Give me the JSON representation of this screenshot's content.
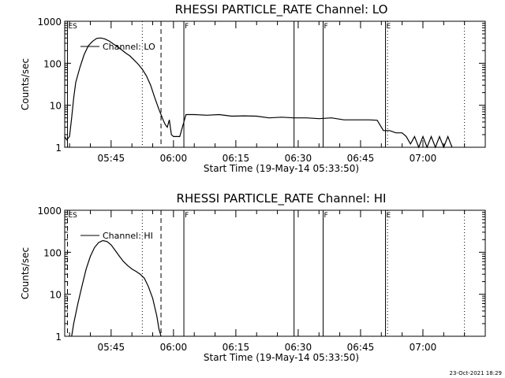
{
  "chart_data": [
    {
      "type": "line",
      "title": "RHESSI PARTICLE_RATE Channel: LO",
      "xlabel": "Start Time (19-May-14 05:33:50)",
      "ylabel": "Counts/sec",
      "yscale": "log",
      "ylim": [
        1,
        1000
      ],
      "xlim": [
        "05:33:50",
        "07:15:00"
      ],
      "xticks": [
        "05:45",
        "06:00",
        "06:15",
        "06:30",
        "06:45",
        "07:00"
      ],
      "yticks": [
        "1",
        "10",
        "100",
        "1000"
      ],
      "legend": "Channel: LO",
      "grid": false,
      "series": [
        {
          "name": "Channel: LO",
          "x": [
            "05:33:50",
            "05:34:20",
            "05:35:00",
            "05:35:30",
            "05:36:00",
            "05:36:30",
            "05:37:30",
            "05:38:30",
            "05:39:30",
            "05:40:30",
            "05:41:30",
            "05:42:30",
            "05:43:30",
            "05:44:30",
            "05:45:30",
            "05:46:30",
            "05:47:30",
            "05:48:30",
            "05:49:30",
            "05:50:30",
            "05:51:30",
            "05:52:30",
            "05:53:30",
            "05:54:30",
            "05:55:30",
            "05:56:30",
            "05:57:30",
            "05:58:00",
            "05:58:30",
            "05:59:00",
            "05:59:30",
            "06:00:00",
            "06:00:30",
            "06:01:00",
            "06:01:30",
            "06:03:00",
            "06:05:00",
            "06:08:00",
            "06:11:00",
            "06:14:00",
            "06:17:00",
            "06:20:00",
            "06:23:00",
            "06:26:00",
            "06:29:00",
            "06:32:00",
            "06:35:00",
            "06:38:00",
            "06:41:00",
            "06:44:00",
            "06:47:00",
            "06:49:00",
            "06:50:30",
            "06:52:00",
            "06:53:30",
            "06:55:00",
            "06:56:00",
            "06:57:00",
            "06:58:00",
            "06:59:00",
            "07:00:00",
            "07:01:00",
            "07:02:00",
            "07:03:00",
            "07:04:00",
            "07:05:00",
            "07:06:00",
            "07:07:00"
          ],
          "y": [
            1.8,
            1.5,
            1.8,
            5,
            15,
            35,
            80,
            160,
            260,
            330,
            390,
            400,
            380,
            340,
            290,
            250,
            210,
            175,
            150,
            120,
            95,
            72,
            50,
            30,
            15,
            8,
            4.5,
            3.5,
            3,
            4.5,
            2,
            1.8,
            1.8,
            1.8,
            1.8,
            6,
            6,
            5.8,
            6,
            5.5,
            5.6,
            5.5,
            5,
            5.2,
            5,
            5,
            4.8,
            5,
            4.5,
            4.5,
            4.5,
            4.4,
            2.5,
            2.5,
            2.2,
            2.2,
            1.8,
            1.2,
            1.8,
            1,
            1.8,
            1,
            1.8,
            1,
            1.8,
            1,
            1.8,
            1
          ]
        }
      ],
      "event_markers": [
        {
          "label": "ES",
          "x": "05:34:30",
          "style": "solid"
        },
        {
          "label": "",
          "x": "05:52:30",
          "style": "dotted"
        },
        {
          "label": "",
          "x": "05:57:00",
          "style": "dashed"
        },
        {
          "label": "F",
          "x": "06:02:30",
          "style": "solid"
        },
        {
          "label": "",
          "x": "06:29:00",
          "style": "solid"
        },
        {
          "label": "F",
          "x": "06:36:00",
          "style": "solid"
        },
        {
          "label": "E",
          "x": "06:51:00",
          "style": "solid"
        },
        {
          "label": "",
          "x": "06:51:30",
          "style": "dotted"
        },
        {
          "label": "",
          "x": "07:10:00",
          "style": "dotted"
        }
      ]
    },
    {
      "type": "line",
      "title": "RHESSI PARTICLE_RATE Channel: HI",
      "xlabel": "Start Time (19-May-14 05:33:50)",
      "ylabel": "Counts/sec",
      "yscale": "log",
      "ylim": [
        1,
        1000
      ],
      "xlim": [
        "05:33:50",
        "07:15:00"
      ],
      "xticks": [
        "05:45",
        "06:00",
        "06:15",
        "06:30",
        "06:45",
        "07:00"
      ],
      "yticks": [
        "1",
        "10",
        "100",
        "1000"
      ],
      "legend": "Channel: HI",
      "grid": false,
      "series": [
        {
          "name": "Channel: HI",
          "x": [
            "05:35:30",
            "05:36:00",
            "05:37:00",
            "05:38:00",
            "05:39:00",
            "05:40:00",
            "05:41:00",
            "05:42:00",
            "05:43:00",
            "05:44:00",
            "05:45:00",
            "05:46:00",
            "05:47:00",
            "05:48:00",
            "05:49:00",
            "05:50:00",
            "05:51:00",
            "05:52:00",
            "05:53:00",
            "05:54:00",
            "05:55:00",
            "05:56:00",
            "05:56:30",
            "05:57:00"
          ],
          "y": [
            1,
            2,
            6,
            16,
            40,
            80,
            130,
            170,
            190,
            180,
            150,
            110,
            80,
            60,
            48,
            40,
            35,
            30,
            24,
            15,
            8,
            3,
            1.5,
            1
          ]
        }
      ],
      "event_markers": [
        {
          "label": "ES",
          "x": "05:34:30",
          "style": "dashed"
        },
        {
          "label": "",
          "x": "05:52:30",
          "style": "dotted"
        },
        {
          "label": "",
          "x": "05:57:00",
          "style": "dashed"
        },
        {
          "label": "F",
          "x": "06:02:30",
          "style": "solid"
        },
        {
          "label": "",
          "x": "06:29:00",
          "style": "solid"
        },
        {
          "label": "F",
          "x": "06:36:00",
          "style": "solid"
        },
        {
          "label": "E",
          "x": "06:51:00",
          "style": "solid"
        },
        {
          "label": "",
          "x": "06:51:30",
          "style": "dotted"
        },
        {
          "label": "",
          "x": "07:10:00",
          "style": "dotted"
        }
      ]
    }
  ],
  "footer": {
    "timestamp": "23-Oct-2021 18:29"
  }
}
